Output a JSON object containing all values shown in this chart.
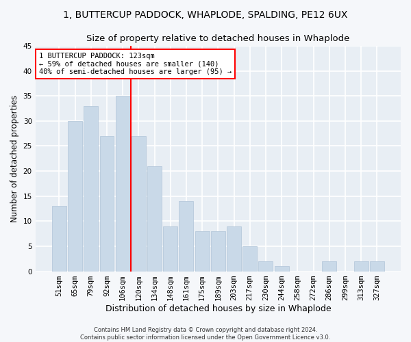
{
  "title": "1, BUTTERCUP PADDOCK, WHAPLODE, SPALDING, PE12 6UX",
  "subtitle": "Size of property relative to detached houses in Whaplode",
  "xlabel": "Distribution of detached houses by size in Whaplode",
  "ylabel": "Number of detached properties",
  "categories": [
    "51sqm",
    "65sqm",
    "79sqm",
    "92sqm",
    "106sqm",
    "120sqm",
    "134sqm",
    "148sqm",
    "161sqm",
    "175sqm",
    "189sqm",
    "203sqm",
    "217sqm",
    "230sqm",
    "244sqm",
    "258sqm",
    "272sqm",
    "286sqm",
    "299sqm",
    "313sqm",
    "327sqm"
  ],
  "values": [
    13,
    30,
    33,
    27,
    35,
    27,
    21,
    9,
    14,
    8,
    8,
    9,
    5,
    2,
    1,
    0,
    0,
    2,
    0,
    2,
    2
  ],
  "bar_color": "#c9d9e8",
  "bar_edgecolor": "#b0c4d8",
  "ylim": [
    0,
    45
  ],
  "yticks": [
    0,
    5,
    10,
    15,
    20,
    25,
    30,
    35,
    40,
    45
  ],
  "red_line_index": 5,
  "annotation_title": "1 BUTTERCUP PADDOCK: 123sqm",
  "annotation_line1": "← 59% of detached houses are smaller (140)",
  "annotation_line2": "40% of semi-detached houses are larger (95) →",
  "footer_line1": "Contains HM Land Registry data © Crown copyright and database right 2024.",
  "footer_line2": "Contains public sector information licensed under the Open Government Licence v3.0.",
  "plot_bg_color": "#e8eef4",
  "fig_bg_color": "#f5f7fa",
  "grid_color": "#ffffff",
  "title_fontsize": 10,
  "subtitle_fontsize": 9.5,
  "tick_fontsize": 7.5,
  "ylabel_fontsize": 8.5,
  "xlabel_fontsize": 9,
  "annotation_fontsize": 7.5,
  "footer_fontsize": 6
}
